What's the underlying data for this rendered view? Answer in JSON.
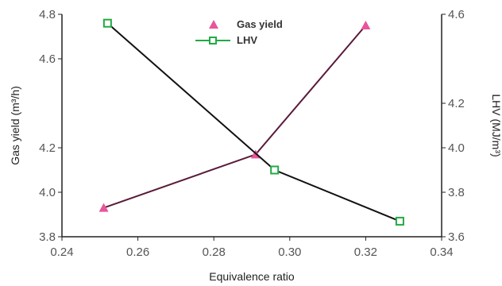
{
  "chart_data": {
    "type": "line",
    "xlabel": "Equivalence ratio",
    "ylabel_left": "Gas yield (m³/h)",
    "ylabel_right": "LHV (MJ/m³)",
    "xlim": [
      0.24,
      0.34
    ],
    "ylim_left": [
      3.8,
      4.8
    ],
    "ylim_right": [
      3.6,
      4.6
    ],
    "x_ticks": [
      "0.24",
      "0.26",
      "0.28",
      "0.30",
      "0.32",
      "0.34"
    ],
    "y_left_ticks": [
      "3.8",
      "4.0",
      "4.2",
      "4.6",
      "4.8"
    ],
    "y_right_ticks": [
      "3.6",
      "3.8",
      "4.0",
      "4.2",
      "4.6"
    ],
    "legend_position": "top-center",
    "grid": false,
    "series": [
      {
        "name": "Gas yield",
        "axis": "left",
        "marker": "triangle",
        "marker_color": "#e8559a",
        "line_color": "#5a1a3a",
        "x": [
          0.251,
          0.291,
          0.32
        ],
        "y": [
          3.93,
          4.17,
          4.75
        ]
      },
      {
        "name": "LHV",
        "axis": "right",
        "marker": "square",
        "marker_color": "#22aa44",
        "line_color": "#111111",
        "x": [
          0.252,
          0.296,
          0.329
        ],
        "y": [
          4.56,
          3.9,
          3.67
        ]
      }
    ]
  }
}
